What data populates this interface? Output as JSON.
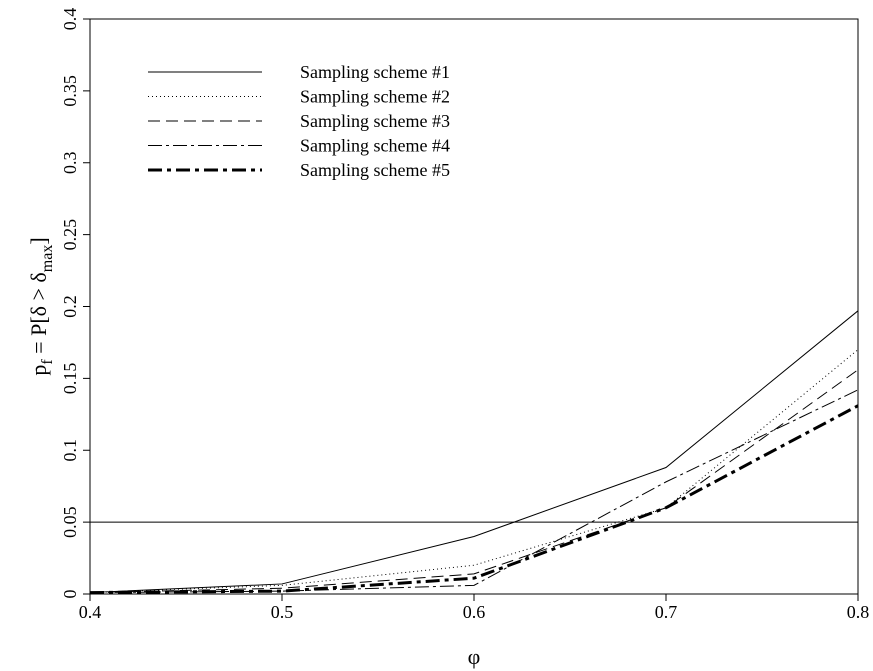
{
  "chart_data": {
    "type": "line",
    "x_label": "φ",
    "y_label_parts": [
      {
        "text": "p"
      },
      {
        "text": "f",
        "sub": true
      },
      {
        "text": " = P[δ > δ"
      },
      {
        "text": "max",
        "sub": true
      },
      {
        "text": "]"
      }
    ],
    "x": [
      0.4,
      0.5,
      0.6,
      0.7,
      0.8
    ],
    "series": [
      {
        "name": "Sampling scheme #1",
        "color": "#000000",
        "dash": "none",
        "width": 1,
        "values": [
          0.001,
          0.007,
          0.04,
          0.088,
          0.197
        ]
      },
      {
        "name": "Sampling scheme #2",
        "color": "#000000",
        "dash": "1,3",
        "width": 1,
        "values": [
          0.001,
          0.006,
          0.02,
          0.06,
          0.17
        ]
      },
      {
        "name": "Sampling scheme #3",
        "color": "#000000",
        "dash": "12,6",
        "width": 1,
        "values": [
          0.001,
          0.004,
          0.014,
          0.06,
          0.156
        ]
      },
      {
        "name": "Sampling scheme #4",
        "color": "#000000",
        "dash": "14,4,3,4",
        "width": 1,
        "values": [
          0.001,
          0.002,
          0.006,
          0.078,
          0.142
        ]
      },
      {
        "name": "Sampling scheme #5",
        "color": "#000000",
        "dash": "14,5,4,5",
        "width": 3,
        "values": [
          0.001,
          0.002,
          0.011,
          0.06,
          0.131
        ]
      }
    ],
    "hline": 0.05,
    "xlim": [
      0.4,
      0.8
    ],
    "xticks": [
      0.4,
      0.5,
      0.6,
      0.7,
      0.8
    ],
    "ylim": [
      0,
      0.4
    ],
    "yticks": [
      0,
      0.05,
      0.1,
      0.15,
      0.2,
      0.25,
      0.3,
      0.35,
      0.4
    ],
    "legend": "top-left"
  }
}
